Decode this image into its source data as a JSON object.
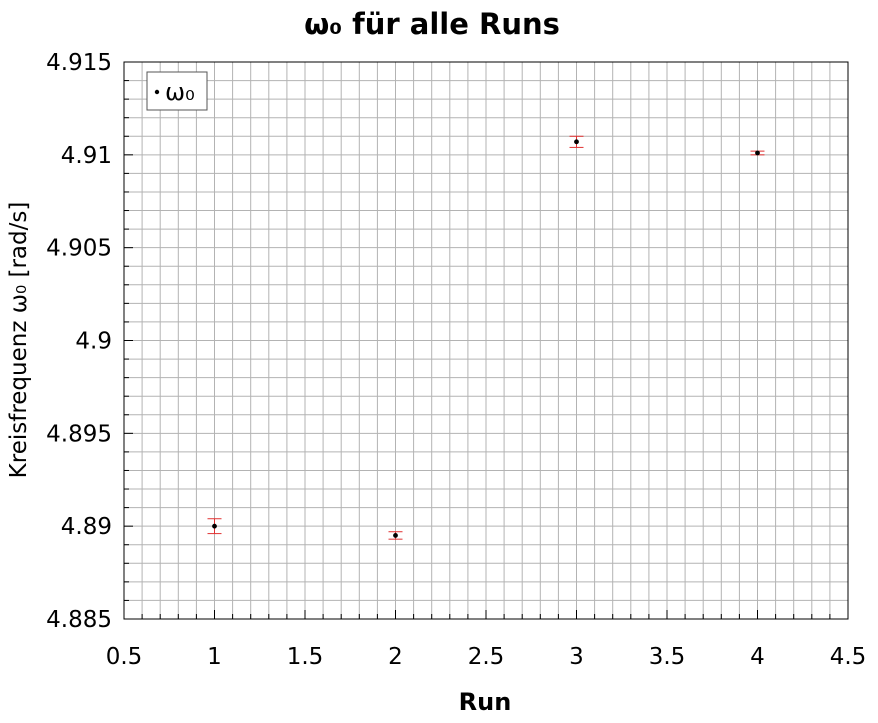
{
  "chart_data": {
    "type": "scatter",
    "title": "ω₀ für alle Runs",
    "xlabel": "Run",
    "ylabel": "Kreisfrequenz ω₀ [rad/s]",
    "xlim": [
      0.5,
      4.5
    ],
    "ylim": [
      4.885,
      4.915
    ],
    "xticks": [
      "0.5",
      "1",
      "1.5",
      "2",
      "2.5",
      "3",
      "3.5",
      "4",
      "4.5"
    ],
    "yticks": [
      "4.885",
      "4.89",
      "4.895",
      "4.9",
      "4.905",
      "4.91",
      "4.915"
    ],
    "grid": true,
    "legend_position": "top-left",
    "series": [
      {
        "name": "ω₀",
        "marker_color": "#000000",
        "errorbar_color": "#e03030",
        "points": [
          {
            "x": 1,
            "y": 4.89,
            "err": 0.0004
          },
          {
            "x": 2,
            "y": 4.8895,
            "err": 0.0002
          },
          {
            "x": 3,
            "y": 4.9107,
            "err": 0.0003
          },
          {
            "x": 4,
            "y": 4.9101,
            "err": 0.0001
          }
        ]
      }
    ]
  }
}
